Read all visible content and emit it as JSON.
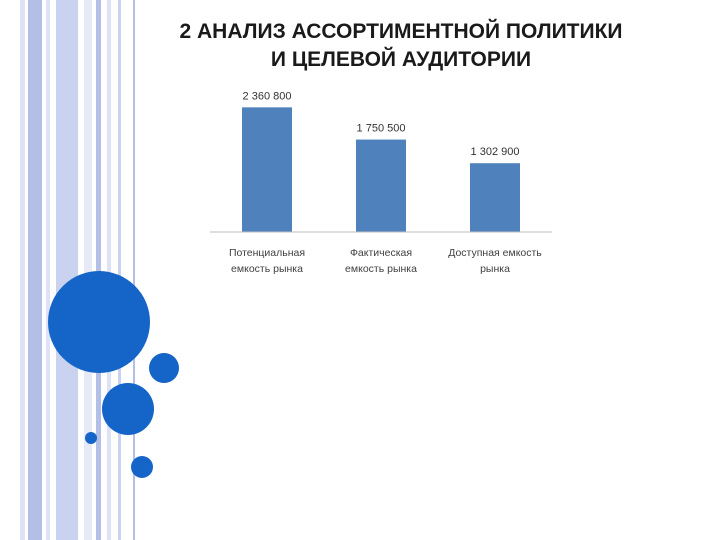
{
  "slide": {
    "title_line1": "2 АНАЛИЗ АССОРТИМЕНТНОЙ ПОЛИТИКИ",
    "title_line2": "И ЦЕЛЕВОЙ АУДИТОРИИ"
  },
  "colors": {
    "bar": "#4f81bd",
    "circle": "#1565c8",
    "stripe_dark": "#b3bfe6",
    "stripe_light": "#dde3f5",
    "axis": "#bfbfbf"
  },
  "chart_data": {
    "type": "bar",
    "categories": [
      [
        "Потенциальная",
        "емкость рынка"
      ],
      [
        "Фактическая",
        "емкость рынка"
      ],
      [
        "Доступная емкость",
        "рынка"
      ]
    ],
    "values": [
      2360800,
      1750500,
      1302900
    ],
    "data_labels": [
      "2 360 800",
      "1 750 500",
      "1 302 900"
    ],
    "title": "",
    "xlabel": "",
    "ylabel": "",
    "ylim": [
      0,
      2500000
    ],
    "grid": false,
    "legend": "none"
  }
}
